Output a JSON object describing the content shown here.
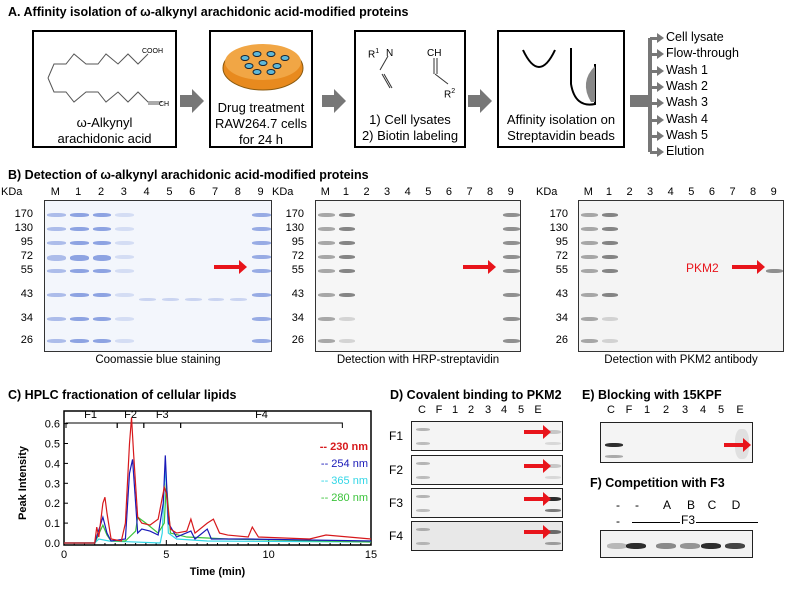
{
  "panelA": {
    "title": "A. Affinity isolation of ω-alkynyl arachidonic acid-modified proteins",
    "box1": {
      "cooh": "COOH",
      "ch": "CH",
      "label1": "ω-Alkynyl",
      "label2": "arachidonic acid"
    },
    "box2": {
      "line1": "Drug treatment",
      "line2": "RAW264.7 cells",
      "line3": "for 24 h"
    },
    "box3": {
      "r1": "R",
      "sup1": "1",
      "n": "N",
      "ch": "CH",
      "r2": "R",
      "sup2": "2",
      "step1": "1) Cell lysates",
      "step2": "2) Biotin labeling"
    },
    "box4": {
      "line1": "Affinity isolation on",
      "line2": "Streptavidin beads"
    },
    "outputs": [
      "Cell lysate",
      "Flow-through",
      "Wash 1",
      "Wash 2",
      "Wash 3",
      "Wash 4",
      "Wash 5",
      "Elution"
    ]
  },
  "panelB": {
    "title": "B) Detection of ω-alkynyl arachidonic acid-modified proteins",
    "kda_label": "KDa",
    "markers": [
      "170",
      "130",
      "95",
      "72",
      "55",
      "43",
      "34",
      "26"
    ],
    "lanes": [
      "M",
      "1",
      "2",
      "3",
      "4",
      "5",
      "6",
      "7",
      "8",
      "9"
    ],
    "captions": [
      "Coomassie blue staining",
      "Detection with HRP-streptavidin",
      "Detection with PKM2 antibody"
    ],
    "pkm2_label": "PKM2"
  },
  "chart_data": {
    "type": "line",
    "title": "C) HPLC fractionation of cellular lipids",
    "xlabel": "Time (min)",
    "ylabel": "Peak Intensity",
    "xlim": [
      0,
      15
    ],
    "ylim": [
      0,
      0.65
    ],
    "xticks": [
      "0",
      "5",
      "10",
      "15"
    ],
    "yticks": [
      "0.0",
      "0.1",
      "0.2",
      "0.3",
      "0.4",
      "0.5",
      "0.6"
    ],
    "legend_position": "top-right",
    "fractions": [
      {
        "label": "F1",
        "start": 0,
        "end": 2.6
      },
      {
        "label": "F2",
        "start": 2.6,
        "end": 3.9
      },
      {
        "label": "F3",
        "start": 3.9,
        "end": 5.7
      },
      {
        "label": "F4",
        "start": 5.7,
        "end": 13.6
      }
    ],
    "series": [
      {
        "name": "-- 230 nm",
        "color": "#d7191c",
        "points": [
          [
            0,
            0
          ],
          [
            1.5,
            0
          ],
          [
            1.6,
            0.08
          ],
          [
            1.7,
            0.03
          ],
          [
            1.9,
            0.2
          ],
          [
            2.0,
            0.23
          ],
          [
            2.1,
            0.15
          ],
          [
            2.3,
            0.02
          ],
          [
            2.8,
            0.01
          ],
          [
            3.0,
            0.1
          ],
          [
            3.2,
            0.5
          ],
          [
            3.3,
            0.63
          ],
          [
            3.4,
            0.45
          ],
          [
            3.6,
            0.13
          ],
          [
            3.8,
            0.1
          ],
          [
            4.2,
            0.09
          ],
          [
            4.6,
            0.12
          ],
          [
            4.9,
            0.28
          ],
          [
            5.0,
            0.25
          ],
          [
            5.2,
            0.07
          ],
          [
            5.5,
            0.05
          ],
          [
            6,
            0.06
          ],
          [
            6.2,
            0.12
          ],
          [
            6.4,
            0.05
          ],
          [
            7,
            0.1
          ],
          [
            7.3,
            0.12
          ],
          [
            7.6,
            0.05
          ],
          [
            8,
            0.04
          ],
          [
            9,
            0.03
          ],
          [
            9.2,
            0.08
          ],
          [
            9.5,
            0.03
          ],
          [
            12,
            0.02
          ],
          [
            12.8,
            0.04
          ],
          [
            15,
            0.02
          ]
        ]
      },
      {
        "name": "-- 254 nm",
        "color": "#1a1ab8",
        "points": [
          [
            0,
            0
          ],
          [
            1.5,
            0
          ],
          [
            1.9,
            0.13
          ],
          [
            2.1,
            0.05
          ],
          [
            2.3,
            0.01
          ],
          [
            3,
            0.02
          ],
          [
            3.2,
            0.35
          ],
          [
            3.35,
            0.42
          ],
          [
            3.5,
            0.2
          ],
          [
            3.6,
            0.05
          ],
          [
            3.8,
            0.07
          ],
          [
            4.2,
            0.06
          ],
          [
            4.6,
            0.04
          ],
          [
            4.85,
            0.2
          ],
          [
            4.95,
            0.44
          ],
          [
            5.1,
            0.1
          ],
          [
            5.5,
            0.03
          ],
          [
            6.2,
            0.06
          ],
          [
            6.4,
            0.02
          ],
          [
            7,
            0.07
          ],
          [
            7.2,
            0.02
          ],
          [
            9,
            0.02
          ],
          [
            15,
            0.01
          ]
        ]
      },
      {
        "name": "-- 365 nm",
        "color": "#33d6e6",
        "points": [
          [
            0,
            0
          ],
          [
            1.5,
            0
          ],
          [
            1.7,
            0.02
          ],
          [
            2.2,
            0.01
          ],
          [
            4.7,
            0
          ],
          [
            4.8,
            0.05
          ],
          [
            4.95,
            0.4
          ],
          [
            5.1,
            0.05
          ],
          [
            5.5,
            0.02
          ],
          [
            7,
            0.01
          ],
          [
            15,
            0.005
          ]
        ]
      },
      {
        "name": "-- 280 nm",
        "color": "#3cc43c",
        "points": [
          [
            0,
            0
          ],
          [
            1.5,
            0
          ],
          [
            1.9,
            0.09
          ],
          [
            2.1,
            0.04
          ],
          [
            2.3,
            0.01
          ],
          [
            3,
            0.01
          ],
          [
            3.5,
            0.06
          ],
          [
            3.6,
            0.13
          ],
          [
            4.0,
            0.1
          ],
          [
            4.6,
            0.05
          ],
          [
            4.9,
            0.1
          ],
          [
            5.0,
            0.3
          ],
          [
            5.2,
            0.05
          ],
          [
            6,
            0.03
          ],
          [
            8,
            0.02
          ],
          [
            15,
            0.005
          ]
        ]
      }
    ]
  },
  "panelD": {
    "title": "D) Covalent binding to PKM2",
    "lanes": [
      "C",
      "F",
      "1",
      "2",
      "3",
      "4",
      "5",
      "E"
    ],
    "rows": [
      "F1",
      "F2",
      "F3",
      "F4"
    ]
  },
  "panelE": {
    "title": "E) Blocking with 15KPF",
    "lanes": [
      "C",
      "F",
      "1",
      "2",
      "3",
      "4",
      "5",
      "E"
    ]
  },
  "panelF": {
    "title": "F) Competition with F3",
    "top_labels": [
      "-",
      "-",
      "A",
      "B",
      "C",
      "D"
    ],
    "bottom_minus": "-",
    "group_label": "F3"
  }
}
